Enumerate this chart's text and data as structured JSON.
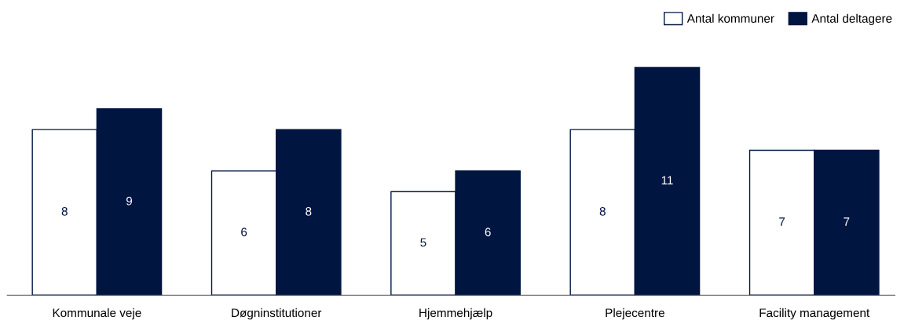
{
  "chart_data": {
    "type": "bar",
    "categories": [
      "Kommunale veje",
      "Døgninstitutioner",
      "Hjemmehjælp",
      "Plejecentre",
      "Facility management"
    ],
    "series": [
      {
        "name": "Antal kommuner",
        "color": "#ffffff",
        "values": [
          8,
          6,
          5,
          8,
          7
        ]
      },
      {
        "name": "Antal deltagere",
        "color": "#001540",
        "values": [
          9,
          8,
          6,
          11,
          7
        ]
      }
    ],
    "data_labels": true,
    "legend": "top right",
    "grid": false
  }
}
